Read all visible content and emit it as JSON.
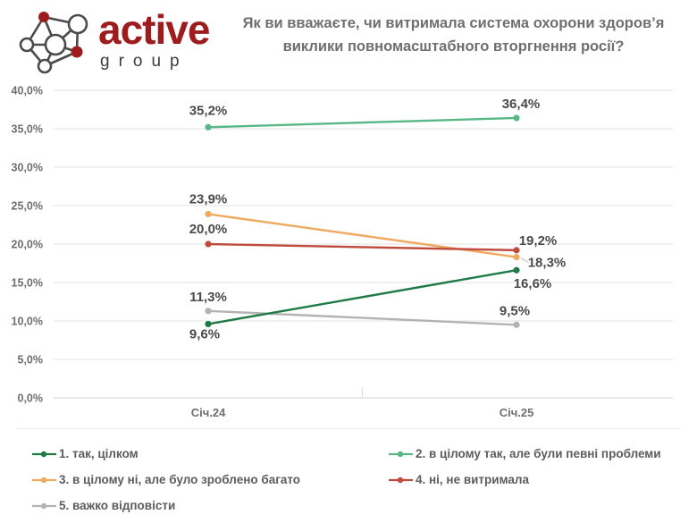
{
  "header": {
    "logo": {
      "brand": "active",
      "sub": "group",
      "brand_color": "#9e1b1e"
    },
    "title": "Як ви вважаєте, чи витримала система охорони здоров’я виклики повномасштабного вторгнення росії?"
  },
  "chart_data": {
    "type": "line",
    "title": "Як ви вважаєте, чи витримала система охорони здоров’я виклики повномасштабного вторгнення росії?",
    "categories": [
      "Січ.24",
      "Січ.25"
    ],
    "series": [
      {
        "name": "1. так, цілком",
        "color": "#1e7a46",
        "values": [
          9.6,
          16.6
        ],
        "labels": [
          "9,6%",
          "16,6%"
        ]
      },
      {
        "name": "2. в цілому так, але були певні проблеми",
        "color": "#57b886",
        "values": [
          35.2,
          36.4
        ],
        "labels": [
          "35,2%",
          "36,4%"
        ]
      },
      {
        "name": "3. в цілому ні, але було зроблено багато",
        "color": "#eeaa61",
        "values": [
          23.9,
          18.3
        ],
        "labels": [
          "23,9%",
          "18,3%"
        ]
      },
      {
        "name": "4. ні, не витримала",
        "color": "#bf4b3d",
        "values": [
          20.0,
          19.2
        ],
        "labels": [
          "20,0%",
          "19,2%"
        ]
      },
      {
        "name": "5. важко відповісти",
        "color": "#b3b3b3",
        "values": [
          11.3,
          9.5
        ],
        "labels": [
          "11,3%",
          "9,5%"
        ]
      }
    ],
    "ylim": [
      0,
      40
    ],
    "ytick_step": 5,
    "ytick_format": "percent-comma",
    "grid": true,
    "legend_position": "bottom"
  },
  "colors": {
    "grid": "#e7e7e7",
    "axis": "#dcdcdc",
    "tick_text": "#6e6e6e",
    "data_label_text": "#4a4a4a",
    "leader_line": "#c9c9c9"
  }
}
